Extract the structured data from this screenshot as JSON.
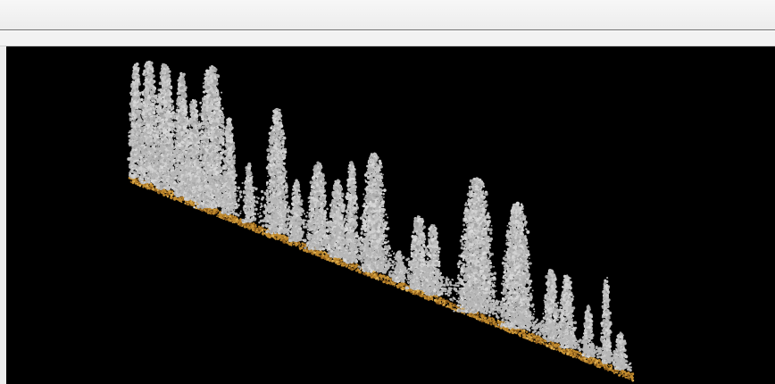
{
  "window": {
    "toolbar_title": "",
    "subbar_text": ""
  },
  "viewport": {
    "background": "#000000",
    "point_color_vegetation": "#b7b7b7",
    "point_color_ground": "#c08a2e",
    "content": "lidar-point-cloud-forest-slope"
  }
}
